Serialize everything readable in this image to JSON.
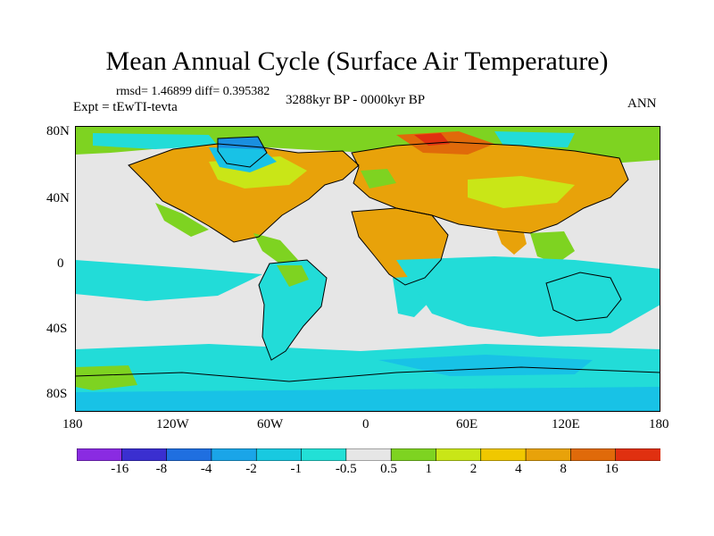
{
  "title": "Mean Annual Cycle (Surface Air Temperature)",
  "stats": "rmsd= 1.46899 diff= 0.395382",
  "experiment": "Expt = tEwTI-tevta",
  "period": "3288kyr BP - 0000kyr BP",
  "season": "ANN",
  "lat_labels": [
    "80N",
    "40N",
    "0",
    "40S",
    "80S"
  ],
  "lon_labels": [
    "180",
    "120W",
    "60W",
    "0",
    "60E",
    "120E",
    "180"
  ],
  "colorbar": {
    "labels": [
      "-16",
      "-8",
      "-4",
      "-2",
      "-1",
      "-0.5",
      "0.5",
      "1",
      "2",
      "4",
      "8",
      "16"
    ],
    "colors": [
      "#8a2be2",
      "#3a2fd0",
      "#1f6fe0",
      "#1aa5e8",
      "#18c9e0",
      "#22e0d6",
      "#e6e6e6",
      "#7ed321",
      "#c9e617",
      "#f0c800",
      "#e8a20a",
      "#e06a0a",
      "#e03010"
    ]
  },
  "map_colors": {
    "ocean_neutral": "#e6e6e6",
    "cool": "#22dcd8",
    "cooler": "#18c2e6",
    "coldest": "#1a8fe0",
    "green": "#7ed321",
    "yellow_green": "#c9e617",
    "orange": "#e8a20a",
    "dark_orange": "#e06a0a",
    "red": "#e03010",
    "coast": "#000000"
  }
}
